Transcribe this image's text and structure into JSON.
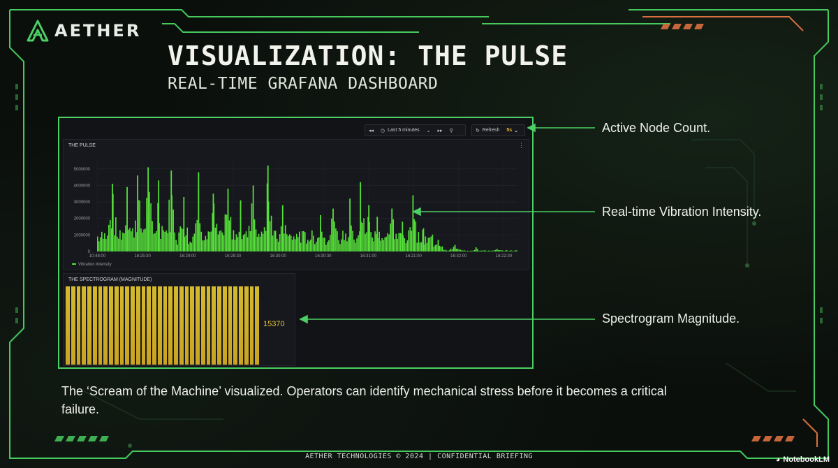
{
  "brand": {
    "name": "AETHER",
    "colors": {
      "accent": "#4ccf64",
      "orange": "#e07a4a",
      "background": "#0b0f0c"
    }
  },
  "slide": {
    "title": "VISUALIZATION: THE PULSE",
    "subtitle": "REAL-TIME GRAFANA DASHBOARD",
    "caption": "The ‘Scream of the Machine’ visualized. Operators can identify mechanical stress before it becomes a critical failure.",
    "footer": "AETHER TECHNOLOGIES © 2024 | CONFIDENTIAL BRIEFING"
  },
  "toolbar": {
    "time_range": "Last 5 minutes",
    "refresh_label": "Refresh",
    "refresh_interval": "5s",
    "icons": [
      "shift-back-icon",
      "clock-icon",
      "chevron-down-icon",
      "shift-forward-icon",
      "zoom-out-icon",
      "refresh-icon"
    ]
  },
  "annotations": {
    "node_count": "Active Node Count.",
    "vibration": "Real-time Vibration Intensity.",
    "spectrogram": "Spectrogram Magnitude."
  },
  "pulse_panel": {
    "title": "THE PULSE",
    "menu_icon": "kebab-menu-icon"
  },
  "spectrogram_panel": {
    "title": "THE SPECTROGRAM (MAGNITUDE)",
    "value": "15370",
    "fill_fraction": 0.83,
    "bar_count": 36
  },
  "watermark": {
    "label": "NotebookLM",
    "icon": "notebooklm-icon"
  },
  "chart_data": {
    "type": "bar",
    "title": "THE PULSE",
    "series": [
      {
        "name": "Vibration Intensity",
        "color": "#56e03a"
      }
    ],
    "ylim": [
      0,
      5500000
    ],
    "yticks": [
      "5000000",
      "4000000",
      "3000000",
      "2000000",
      "1000000",
      "0"
    ],
    "xticks": [
      "10:48:00",
      "16:25:30",
      "16:29:00",
      "16:28:30",
      "16:30:00",
      "16:30:30",
      "16:31:00",
      "16:21:00",
      "16:32:00",
      "16:22:30"
    ],
    "grid": true,
    "legend": "bottom-left",
    "peaks": [
      {
        "x": 0.035,
        "value": 4100000
      },
      {
        "x": 0.07,
        "value": 3900000
      },
      {
        "x": 0.095,
        "value": 4600000
      },
      {
        "x": 0.12,
        "value": 5100000
      },
      {
        "x": 0.145,
        "value": 4300000
      },
      {
        "x": 0.175,
        "value": 4900000
      },
      {
        "x": 0.205,
        "value": 3300000
      },
      {
        "x": 0.24,
        "value": 4800000
      },
      {
        "x": 0.275,
        "value": 3500000
      },
      {
        "x": 0.31,
        "value": 3800000
      },
      {
        "x": 0.34,
        "value": 3100000
      },
      {
        "x": 0.37,
        "value": 4000000
      },
      {
        "x": 0.405,
        "value": 5200000
      },
      {
        "x": 0.44,
        "value": 2800000
      },
      {
        "x": 0.48,
        "value": 1200000
      },
      {
        "x": 0.53,
        "value": 2200000
      },
      {
        "x": 0.56,
        "value": 2600000
      },
      {
        "x": 0.6,
        "value": 3200000
      },
      {
        "x": 0.625,
        "value": 4200000
      },
      {
        "x": 0.645,
        "value": 2800000
      },
      {
        "x": 0.665,
        "value": 2100000
      },
      {
        "x": 0.7,
        "value": 2600000
      },
      {
        "x": 0.725,
        "value": 1800000
      },
      {
        "x": 0.75,
        "value": 3400000
      },
      {
        "x": 0.775,
        "value": 1400000
      },
      {
        "x": 0.81,
        "value": 700000
      },
      {
        "x": 0.85,
        "value": 400000
      },
      {
        "x": 0.9,
        "value": 250000
      },
      {
        "x": 0.95,
        "value": 150000
      }
    ]
  }
}
